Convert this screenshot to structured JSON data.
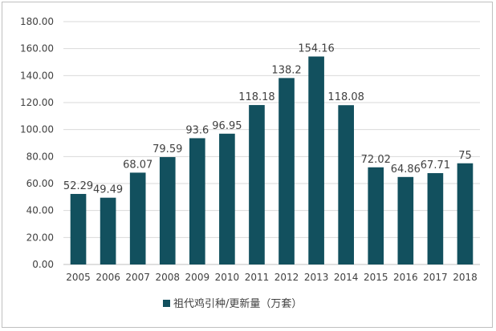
{
  "chart_data": {
    "type": "bar",
    "title": "",
    "xlabel": "",
    "ylabel": "",
    "categories": [
      "2005",
      "2006",
      "2007",
      "2008",
      "2009",
      "2010",
      "2011",
      "2012",
      "2013",
      "2014",
      "2015",
      "2016",
      "2017",
      "2018"
    ],
    "series": [
      {
        "name": "祖代鸡引种/更新量（万套）",
        "values": [
          52.29,
          49.49,
          68.07,
          79.59,
          93.6,
          96.95,
          118.18,
          138.2,
          154.16,
          118.08,
          72.02,
          64.86,
          67.71,
          75
        ],
        "labels": [
          "52.29",
          "49.49",
          "68.07",
          "79.59",
          "93.6",
          "96.95",
          "118.18",
          "138.2",
          "154.16",
          "118.08",
          "72.02",
          "64.86",
          "67.71",
          "75"
        ],
        "color": "#12505e"
      }
    ],
    "ylim": [
      0,
      180
    ],
    "yticks": [
      0,
      20,
      40,
      60,
      80,
      100,
      120,
      140,
      160,
      180
    ],
    "ytick_labels": [
      "0.00",
      "20.00",
      "40.00",
      "60.00",
      "80.00",
      "100.00",
      "120.00",
      "140.00",
      "160.00",
      "180.00"
    ],
    "grid": true,
    "legend_position": "bottom"
  }
}
